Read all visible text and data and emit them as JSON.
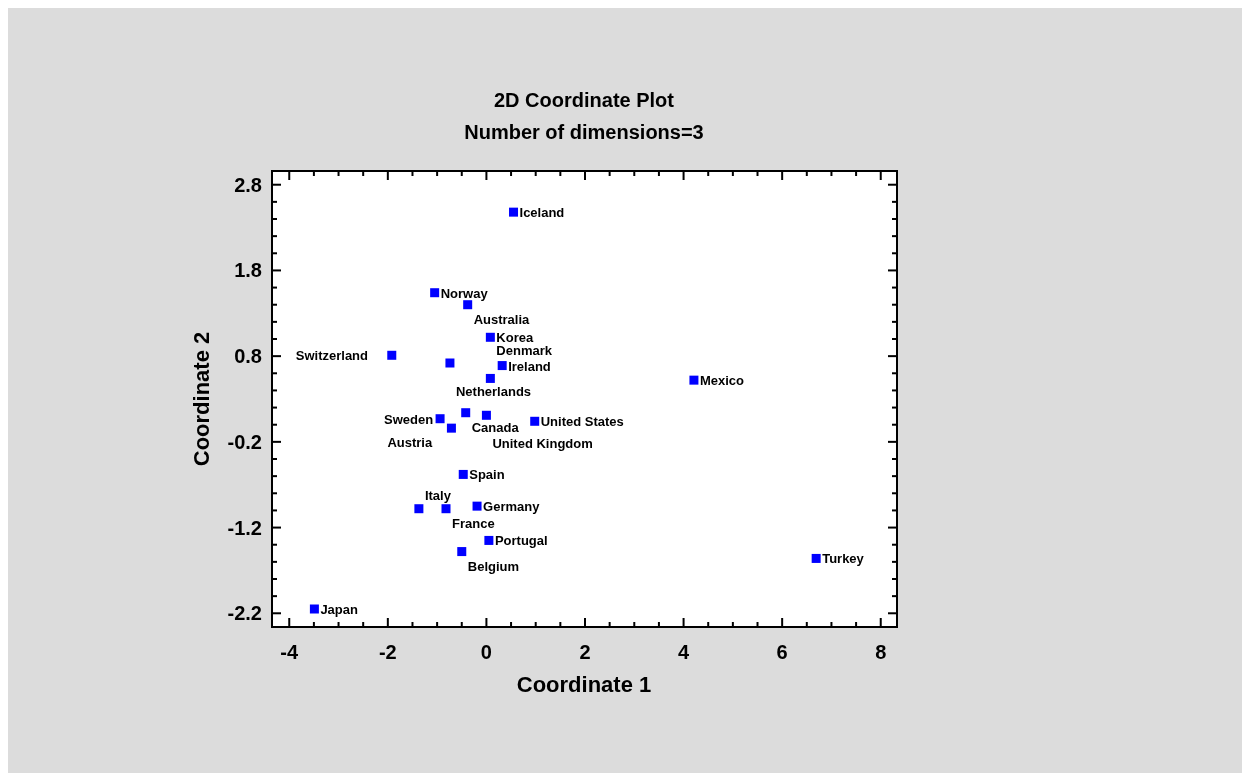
{
  "chart_data": {
    "type": "scatter",
    "title": "2D Coordinate Plot",
    "subtitle": "Number of dimensions=3",
    "xlabel": "Coordinate 1",
    "ylabel": "Coordinate 2",
    "xlim": [
      -4.35,
      8.33
    ],
    "ylim": [
      -2.36,
      2.96
    ],
    "xticks": [
      -4,
      {
        "value": -3.5,
        "label": null
      },
      {
        "value": -3,
        "label": null
      },
      {
        "value": -2.5,
        "label": null
      },
      -2,
      {
        "value": -1.5,
        "label": null
      },
      {
        "value": -1,
        "label": null
      },
      {
        "value": -0.5,
        "label": null
      },
      0,
      {
        "value": 0.5,
        "label": null
      },
      {
        "value": 1,
        "label": null
      },
      {
        "value": 1.5,
        "label": null
      },
      2,
      {
        "value": 2.5,
        "label": null
      },
      {
        "value": 3,
        "label": null
      },
      {
        "value": 3.5,
        "label": null
      },
      4,
      {
        "value": 4.5,
        "label": null
      },
      {
        "value": 5,
        "label": null
      },
      {
        "value": 5.5,
        "label": null
      },
      6,
      {
        "value": 6.5,
        "label": null
      },
      {
        "value": 7,
        "label": null
      },
      {
        "value": 7.5,
        "label": null
      },
      8
    ],
    "yticks": [
      2.8,
      {
        "value": 2.6,
        "label": null
      },
      {
        "value": 2.4,
        "label": null
      },
      {
        "value": 2.2,
        "label": null
      },
      {
        "value": 2.0,
        "label": null
      },
      1.8,
      {
        "value": 1.6,
        "label": null
      },
      {
        "value": 1.4,
        "label": null
      },
      {
        "value": 1.2,
        "label": null
      },
      {
        "value": 1.0,
        "label": null
      },
      0.8,
      {
        "value": 0.6,
        "label": null
      },
      {
        "value": 0.4,
        "label": null
      },
      {
        "value": 0.2,
        "label": null
      },
      {
        "value": 0.0,
        "label": null
      },
      -0.2,
      {
        "value": -0.4,
        "label": null
      },
      {
        "value": -0.6,
        "label": null
      },
      {
        "value": -0.8,
        "label": null
      },
      {
        "value": -1.0,
        "label": null
      },
      -1.2,
      {
        "value": -1.4,
        "label": null
      },
      {
        "value": -1.6,
        "label": null
      },
      {
        "value": -1.8,
        "label": null
      },
      {
        "value": -2.0,
        "label": null
      },
      -2.2
    ],
    "grid": false,
    "marker": "square",
    "series": [
      {
        "color": "#0000ff",
        "x": [
          0.55,
          -1.05,
          -0.38,
          0.08,
          -1.92,
          -0.74,
          0.32,
          0.08,
          4.21,
          -0.42,
          -0.94,
          0.0,
          0.98,
          -0.71,
          -0.47,
          -1.37,
          -0.82,
          -0.19,
          0.05,
          -0.5,
          -3.49,
          6.69
        ],
        "values": [
          2.48,
          1.54,
          1.4,
          1.02,
          0.81,
          0.72,
          0.69,
          0.54,
          0.52,
          0.14,
          0.07,
          0.11,
          0.04,
          -0.04,
          -0.58,
          -0.98,
          -0.98,
          -0.95,
          -1.35,
          -1.48,
          -2.15,
          -1.56
        ]
      }
    ],
    "annotations": [
      {
        "text": "Iceland",
        "x": 0.55,
        "y": 2.48
      },
      {
        "text": "Norway",
        "x": -1.05,
        "y": 1.54
      },
      {
        "text": "Australia",
        "x": -0.38,
        "y": 1.4
      },
      {
        "text": "Korea",
        "x": 0.08,
        "y": 1.02
      },
      {
        "text": "Switzerland",
        "x": -1.92,
        "y": 0.81
      },
      {
        "text": "Netherlands",
        "x": -0.74,
        "y": 0.72
      },
      {
        "text": "Ireland",
        "x": 0.32,
        "y": 0.69
      },
      {
        "text": "Denmark",
        "x": 0.08,
        "y": 0.54
      },
      {
        "text": "Mexico",
        "x": 4.21,
        "y": 0.52
      },
      {
        "text": "Canada",
        "x": -0.42,
        "y": 0.14
      },
      {
        "text": "Sweden",
        "x": -0.94,
        "y": 0.07
      },
      {
        "text": "United Kingdom",
        "x": 0.0,
        "y": 0.11
      },
      {
        "text": "United States",
        "x": 0.98,
        "y": 0.04
      },
      {
        "text": "Austria",
        "x": -0.71,
        "y": -0.04
      },
      {
        "text": "Spain",
        "x": -0.47,
        "y": -0.58
      },
      {
        "text": "Italy",
        "x": -1.37,
        "y": -0.98
      },
      {
        "text": "France",
        "x": -0.82,
        "y": -0.98
      },
      {
        "text": "Germany",
        "x": -0.19,
        "y": -0.95
      },
      {
        "text": "Portugal",
        "x": 0.05,
        "y": -1.35
      },
      {
        "text": "Belgium",
        "x": -0.5,
        "y": -1.48
      },
      {
        "text": "Japan",
        "x": -3.49,
        "y": -2.15
      },
      {
        "text": "Turkey",
        "x": 6.69,
        "y": -1.56
      }
    ]
  }
}
